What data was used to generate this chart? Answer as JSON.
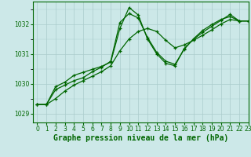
{
  "title": "Graphe pression niveau de la mer (hPa)",
  "bg_color": "#cce8e8",
  "grid_color": "#aacccc",
  "line_color": "#006600",
  "xlim": [
    -0.5,
    23
  ],
  "ylim": [
    1028.7,
    1032.75
  ],
  "yticks": [
    1029,
    1030,
    1031,
    1032
  ],
  "xticks": [
    0,
    1,
    2,
    3,
    4,
    5,
    6,
    7,
    8,
    9,
    10,
    11,
    12,
    13,
    14,
    15,
    16,
    17,
    18,
    19,
    20,
    21,
    22,
    23
  ],
  "line1_y": [
    1029.3,
    1029.3,
    1029.5,
    1029.75,
    1029.95,
    1030.1,
    1030.25,
    1030.4,
    1030.6,
    1031.1,
    1031.5,
    1031.75,
    1031.85,
    1031.75,
    1031.45,
    1031.2,
    1031.3,
    1031.45,
    1031.62,
    1031.8,
    1032.0,
    1032.15,
    1032.1,
    1032.1
  ],
  "line2_y": [
    1029.3,
    1029.3,
    1029.8,
    1029.95,
    1030.1,
    1030.2,
    1030.4,
    1030.55,
    1030.75,
    1032.05,
    1032.35,
    1032.2,
    1031.55,
    1031.05,
    1030.75,
    1030.65,
    1031.15,
    1031.5,
    1031.78,
    1031.98,
    1032.15,
    1032.25,
    1032.1,
    1032.1
  ],
  "line3_y": [
    1029.3,
    1029.3,
    1029.9,
    1030.05,
    1030.28,
    1030.38,
    1030.48,
    1030.58,
    1030.72,
    1031.85,
    1032.55,
    1032.3,
    1031.5,
    1031.0,
    1030.68,
    1030.6,
    1031.18,
    1031.48,
    1031.72,
    1031.92,
    1032.12,
    1032.32,
    1032.1,
    1032.1
  ],
  "title_fontsize": 7,
  "tick_fontsize": 5.5
}
